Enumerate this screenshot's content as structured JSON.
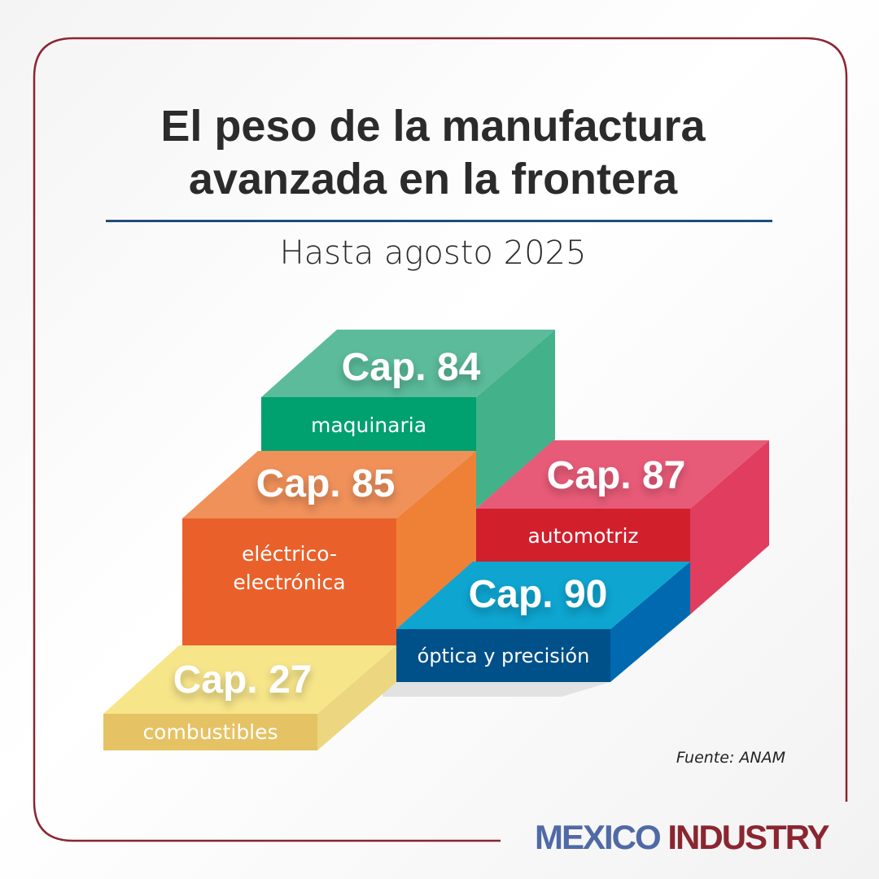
{
  "header": {
    "title_line1": "El peso de la manufactura",
    "title_line2": "avanzada en la frontera",
    "subtitle": "Hasta agosto 2025"
  },
  "blocks": [
    {
      "cap": "Cap. 84",
      "label": "maquinaria",
      "colors": {
        "front": "#00a06f",
        "top": "#5bbb9b",
        "side": "#43b28a"
      }
    },
    {
      "cap": "Cap. 85",
      "label_line1": "eléctrico-",
      "label_line2": "electrónica",
      "colors": {
        "front": "#e9602a",
        "top": "#f0915a",
        "side": "#ef8136"
      }
    },
    {
      "cap": "Cap. 87",
      "label": "automotriz",
      "colors": {
        "front": "#d11f2c",
        "top": "#e85b78",
        "side": "#e03d5f"
      }
    },
    {
      "cap": "Cap. 90",
      "label": "óptica y precisión",
      "colors": {
        "front": "#00508a",
        "top": "#0ea5d1",
        "side": "#0069b0"
      }
    },
    {
      "cap": "Cap. 27",
      "label": "combustibles",
      "colors": {
        "front": "#e5c263",
        "top": "#f7e58a",
        "side": "#ecd67f"
      }
    }
  ],
  "source": "Fuente: ANAM",
  "logo": {
    "word1": "MEXICO",
    "word2": "INDUSTRY"
  },
  "colors": {
    "frame": "#8b2530",
    "rule": "#1f4e79"
  }
}
